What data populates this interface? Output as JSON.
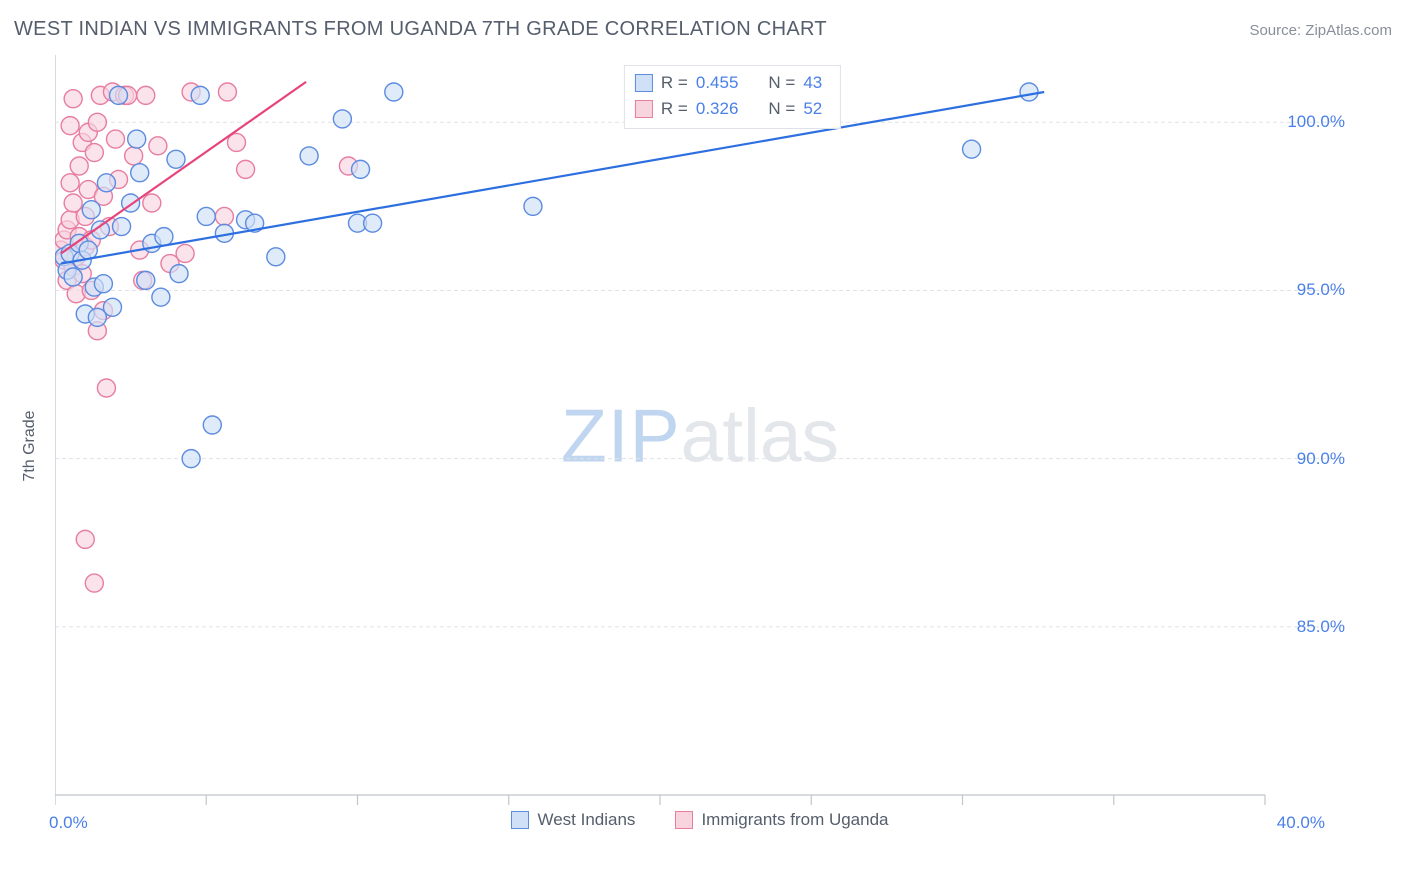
{
  "title": "WEST INDIAN VS IMMIGRANTS FROM UGANDA 7TH GRADE CORRELATION CHART",
  "source": "Source: ZipAtlas.com",
  "watermark": {
    "left": "ZIP",
    "right": "atlas"
  },
  "yaxis_title": "7th Grade",
  "chart": {
    "type": "scatter",
    "background_color": "#ffffff",
    "grid_color": "#dfe3e8",
    "grid_dash": "4 3",
    "axis_line_color": "#bfc5cd",
    "xlim": [
      0,
      40
    ],
    "ylim": [
      80,
      102
    ],
    "x_ticks": [
      0,
      5,
      10,
      15,
      20,
      25,
      30,
      35,
      40
    ],
    "x_tick_labels": {
      "0": "0.0%",
      "40": "40.0%"
    },
    "y_ticks": [
      85,
      90,
      95,
      100
    ],
    "y_tick_labels": {
      "85": "85.0%",
      "90": "90.0%",
      "95": "95.0%",
      "100": "100.0%"
    },
    "axis_label_color": "#4a80e8",
    "axis_label_fontsize": 17,
    "marker_radius": 9,
    "marker_stroke_width": 1.4,
    "line_width": 2.2,
    "series": [
      {
        "name": "West Indians",
        "fill": "#cfe0f7",
        "stroke": "#5c8be0",
        "fill_opacity": 0.65,
        "line_color": "#2d6fe0",
        "R": "0.455",
        "N": "43",
        "trend": {
          "x1": 0.2,
          "y1": 95.8,
          "x2": 32.7,
          "y2": 100.9
        },
        "points": [
          [
            0.3,
            96.0
          ],
          [
            0.4,
            95.6
          ],
          [
            0.5,
            96.1
          ],
          [
            0.6,
            95.4
          ],
          [
            0.8,
            96.4
          ],
          [
            0.9,
            95.9
          ],
          [
            1.0,
            94.3
          ],
          [
            1.1,
            96.2
          ],
          [
            1.2,
            97.4
          ],
          [
            1.3,
            95.1
          ],
          [
            1.4,
            94.2
          ],
          [
            1.5,
            96.8
          ],
          [
            1.6,
            95.2
          ],
          [
            1.7,
            98.2
          ],
          [
            1.9,
            94.5
          ],
          [
            2.1,
            100.8
          ],
          [
            2.2,
            96.9
          ],
          [
            2.5,
            97.6
          ],
          [
            2.7,
            99.5
          ],
          [
            2.8,
            98.5
          ],
          [
            3.0,
            95.3
          ],
          [
            3.2,
            96.4
          ],
          [
            3.5,
            94.8
          ],
          [
            3.6,
            96.6
          ],
          [
            4.0,
            98.9
          ],
          [
            4.1,
            95.5
          ],
          [
            4.5,
            90.0
          ],
          [
            4.8,
            100.8
          ],
          [
            5.0,
            97.2
          ],
          [
            5.2,
            91.0
          ],
          [
            5.6,
            96.7
          ],
          [
            6.3,
            97.1
          ],
          [
            6.6,
            97.0
          ],
          [
            7.3,
            96.0
          ],
          [
            8.4,
            99.0
          ],
          [
            9.5,
            100.1
          ],
          [
            10.0,
            97.0
          ],
          [
            10.1,
            98.6
          ],
          [
            10.5,
            97.0
          ],
          [
            11.2,
            100.9
          ],
          [
            15.8,
            97.5
          ],
          [
            30.3,
            99.2
          ],
          [
            32.2,
            100.9
          ]
        ]
      },
      {
        "name": "Immigrants from Uganda",
        "fill": "#f8d4df",
        "stroke": "#e87da0",
        "fill_opacity": 0.65,
        "line_color": "#e6447a",
        "R": "0.326",
        "N": "52",
        "trend": {
          "x1": 0.2,
          "y1": 96.1,
          "x2": 8.3,
          "y2": 101.2
        },
        "points": [
          [
            0.2,
            96.2
          ],
          [
            0.3,
            95.9
          ],
          [
            0.3,
            96.5
          ],
          [
            0.4,
            95.3
          ],
          [
            0.4,
            96.8
          ],
          [
            0.5,
            97.1
          ],
          [
            0.5,
            98.2
          ],
          [
            0.5,
            99.9
          ],
          [
            0.6,
            95.7
          ],
          [
            0.6,
            97.6
          ],
          [
            0.6,
            100.7
          ],
          [
            0.7,
            96.0
          ],
          [
            0.7,
            94.9
          ],
          [
            0.8,
            98.7
          ],
          [
            0.8,
            96.6
          ],
          [
            0.9,
            95.5
          ],
          [
            0.9,
            99.4
          ],
          [
            1.0,
            96.3
          ],
          [
            1.0,
            97.2
          ],
          [
            1.0,
            87.6
          ],
          [
            1.1,
            98.0
          ],
          [
            1.1,
            99.7
          ],
          [
            1.2,
            96.5
          ],
          [
            1.2,
            95.0
          ],
          [
            1.3,
            99.1
          ],
          [
            1.3,
            86.3
          ],
          [
            1.4,
            100.0
          ],
          [
            1.4,
            93.8
          ],
          [
            1.5,
            100.8
          ],
          [
            1.6,
            94.4
          ],
          [
            1.6,
            97.8
          ],
          [
            1.7,
            92.1
          ],
          [
            1.8,
            96.9
          ],
          [
            1.9,
            100.9
          ],
          [
            2.0,
            99.5
          ],
          [
            2.1,
            98.3
          ],
          [
            2.3,
            100.8
          ],
          [
            2.4,
            100.8
          ],
          [
            2.6,
            99.0
          ],
          [
            2.8,
            96.2
          ],
          [
            2.9,
            95.3
          ],
          [
            3.0,
            100.8
          ],
          [
            3.2,
            97.6
          ],
          [
            3.4,
            99.3
          ],
          [
            3.8,
            95.8
          ],
          [
            4.3,
            96.1
          ],
          [
            4.5,
            100.9
          ],
          [
            5.6,
            97.2
          ],
          [
            5.7,
            100.9
          ],
          [
            6.0,
            99.4
          ],
          [
            6.3,
            98.6
          ],
          [
            9.7,
            98.7
          ]
        ]
      }
    ]
  },
  "legend_top_labels": {
    "R": "R =",
    "N": "N ="
  },
  "legend_bottom": [
    {
      "label": "West Indians",
      "fill": "#cfe0f7",
      "stroke": "#5c8be0"
    },
    {
      "label": "Immigrants from Uganda",
      "fill": "#f8d4df",
      "stroke": "#e87da0"
    }
  ]
}
